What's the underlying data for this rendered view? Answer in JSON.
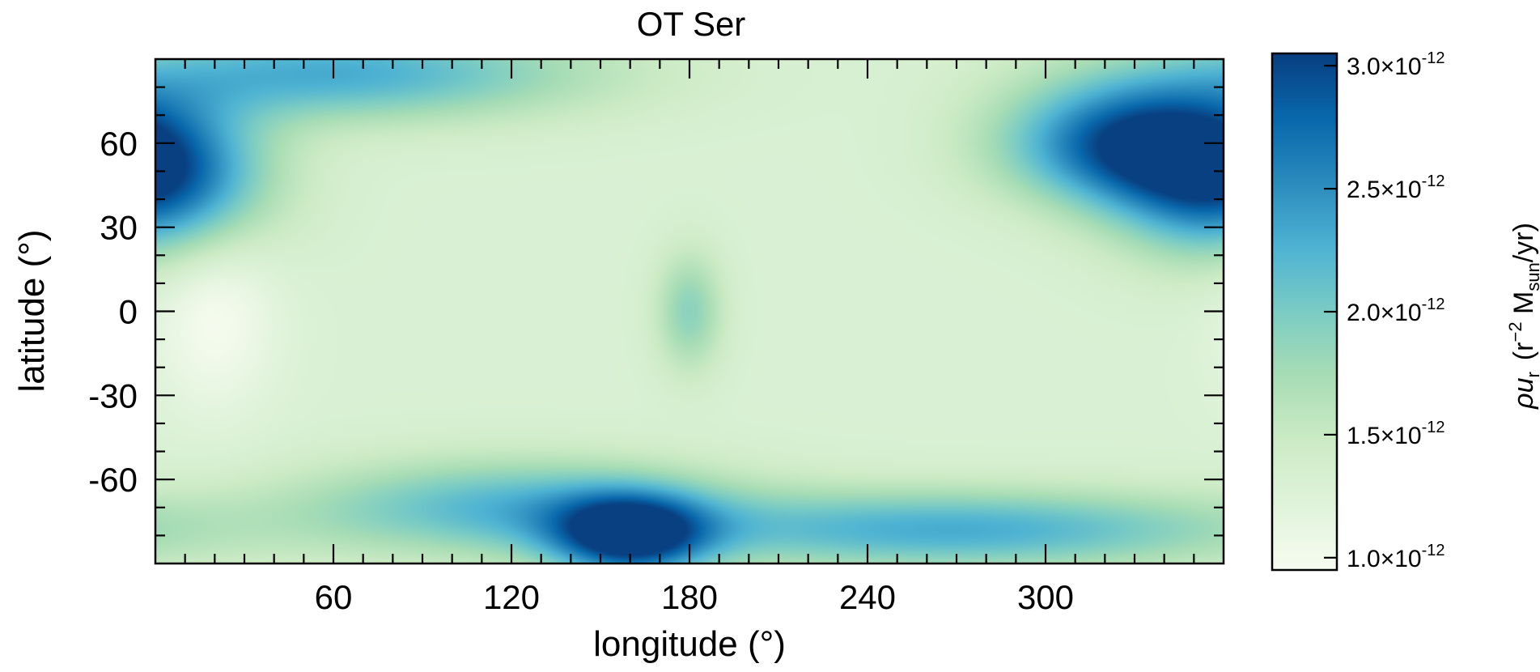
{
  "chart_data": {
    "type": "heatmap",
    "title": "OT Ser",
    "xlabel": "longitude (°)",
    "ylabel": "latitude (°)",
    "xlim": [
      0,
      360
    ],
    "ylim": [
      -90,
      90
    ],
    "x_ticks": [
      60,
      120,
      180,
      240,
      300
    ],
    "y_ticks": [
      60,
      30,
      0,
      -30,
      -60
    ],
    "x_tick_labels": [
      "60",
      "120",
      "180",
      "240",
      "300"
    ],
    "y_tick_labels": [
      "60",
      "30",
      "0",
      "-30",
      "-60"
    ],
    "colorbar": {
      "label_text": "ρu",
      "label_sub": "r",
      "label_unit_open": "(r",
      "label_unit_exp": "−2",
      "label_unit_m": " M",
      "label_unit_sub": "sun",
      "label_unit_close": "/yr)",
      "range": [
        9.5e-13,
        3.05e-12
      ],
      "tick_values": [
        1e-12,
        1.5e-12,
        2e-12,
        2.5e-12,
        3e-12
      ],
      "tick_mantissas": [
        "1.0",
        "1.5",
        "2.0",
        "2.5",
        "3.0"
      ],
      "tick_times": "×10",
      "tick_exponent": "-12",
      "colormap": [
        "#f7fcf0",
        "#e0f3db",
        "#ccebc5",
        "#a8ddb5",
        "#7bccc4",
        "#4eb3d3",
        "#2b8cbe",
        "#0868ac",
        "#084081"
      ]
    },
    "blobs_description_free_field": {
      "background": 1.3e-12,
      "features": [
        {
          "lon": 0,
          "lat": 45,
          "value": 2.7e-12,
          "slon": 25,
          "slat": 18
        },
        {
          "lon": 330,
          "lat": 60,
          "value": 2.9e-12,
          "slon": 30,
          "slat": 15
        },
        {
          "lon": 160,
          "lat": -80,
          "value": 3e-12,
          "slon": 18,
          "slat": 10
        },
        {
          "lon": 270,
          "lat": -78,
          "value": 2.3e-12,
          "slon": 70,
          "slat": 10
        },
        {
          "lon": 120,
          "lat": -70,
          "value": 2.2e-12,
          "slon": 50,
          "slat": 12
        },
        {
          "lon": 60,
          "lat": 85,
          "value": 2.3e-12,
          "slon": 60,
          "slat": 12
        },
        {
          "lon": 180,
          "lat": 0,
          "value": 1.9e-12,
          "slon": 8,
          "slat": 15
        },
        {
          "lon": 20,
          "lat": 0,
          "value": 9.5e-13,
          "slon": 15,
          "slat": 25
        }
      ]
    }
  }
}
